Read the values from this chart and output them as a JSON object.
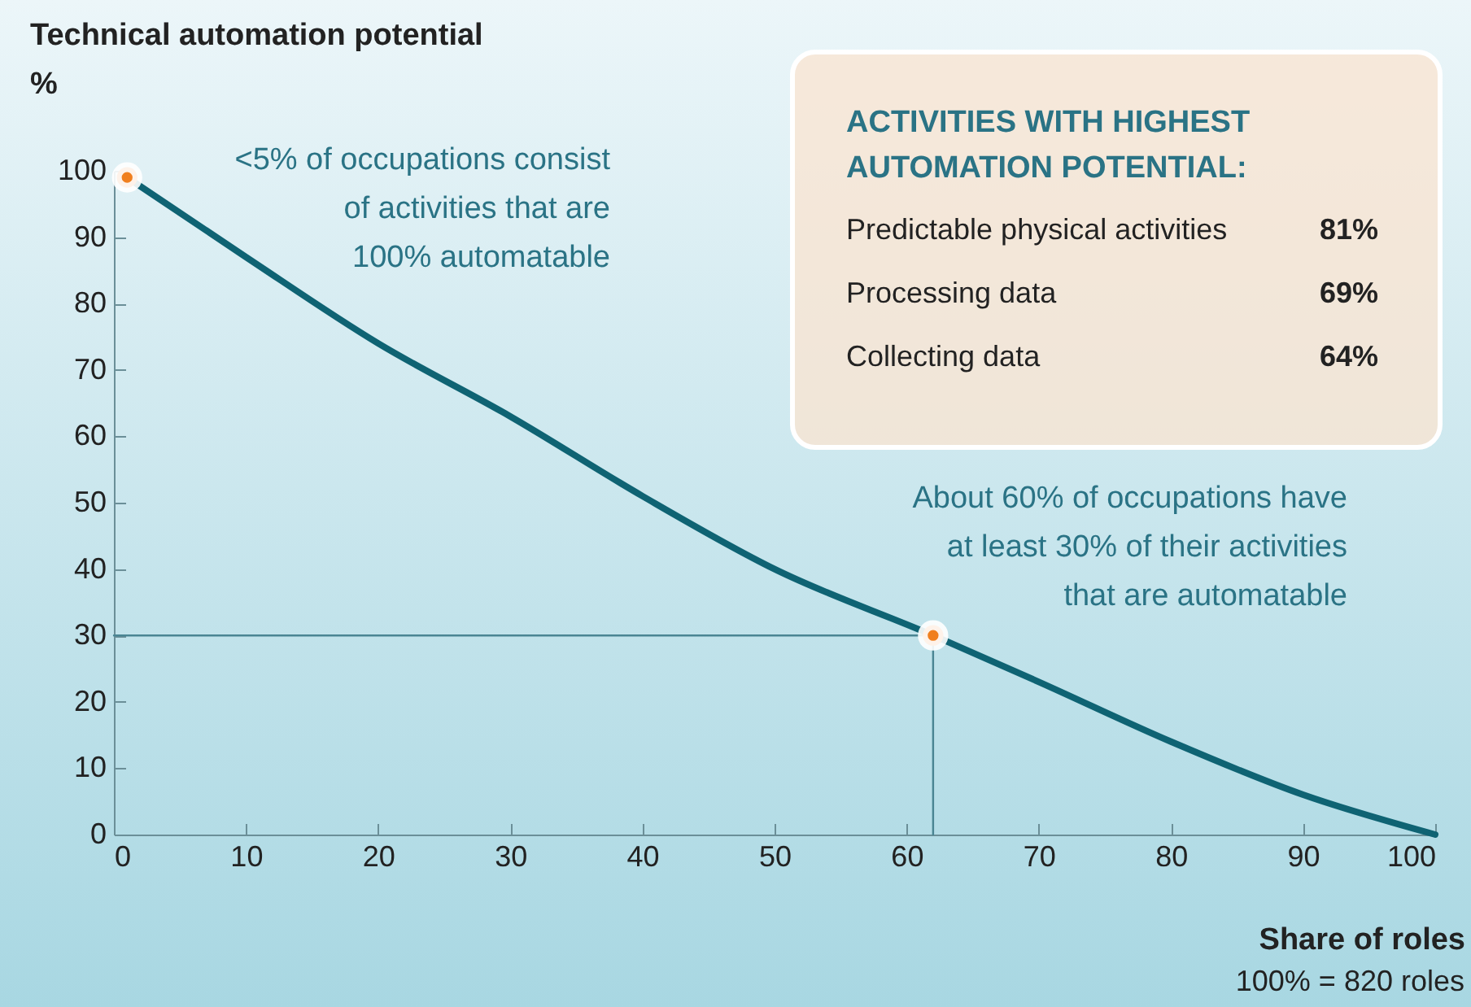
{
  "chart_data": {
    "type": "line",
    "ylabel": "Technical automation potential\n%",
    "xlabel": "Share of roles",
    "xlim": [
      0,
      100
    ],
    "xticks": [
      0,
      10,
      20,
      30,
      40,
      50,
      60,
      70,
      80,
      90,
      100
    ],
    "ylim": [
      0,
      100
    ],
    "yticks": [
      0,
      10,
      20,
      30,
      40,
      50,
      60,
      70,
      80,
      90,
      100
    ],
    "grid": false,
    "series": [
      {
        "color": "#0f6373",
        "x": [
          1,
          10,
          20,
          30,
          40,
          50,
          62,
          70,
          80,
          90,
          100
        ],
        "values": [
          99,
          87,
          74,
          63,
          51,
          40,
          30,
          23,
          14,
          6,
          0
        ]
      },
      {
        "color": "#4a8593",
        "x": [
          0,
          62,
          62
        ],
        "values": [
          30,
          30,
          0
        ]
      },
      {
        "type": "scatter",
        "marker": "circle",
        "color": "#f07f1e",
        "x": [
          1,
          62
        ],
        "values": [
          99,
          30
        ]
      }
    ],
    "annotations": [
      "<5% of occupations consist\nof activities that are\n100% automatable",
      "About 60% of occupations have\nat least 30% of their activities\nthat are automatable",
      "100% = 820 roles",
      "ACTIVITIES WITH HIGHEST\nAUTOMATION POTENTIAL:",
      "Predictable physical activities 81%",
      "Processing data 69%",
      "Collecting data 64%"
    ]
  }
}
